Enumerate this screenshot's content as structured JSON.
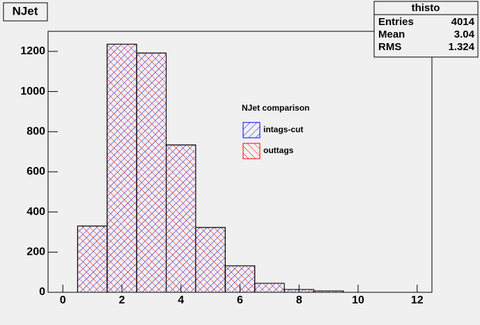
{
  "chart_data": {
    "type": "histogram",
    "title": "NJet",
    "bins": [
      0.5,
      1.5,
      2.5,
      3.5,
      4.5,
      5.5,
      6.5,
      7.5,
      8.5,
      9.5
    ],
    "series": [
      {
        "name": "intags-cut",
        "color": "#0000ff",
        "values": [
          330,
          1236,
          1192,
          734,
          323,
          132,
          45,
          14,
          7
        ]
      },
      {
        "name": "outtags",
        "color": "#ff0000",
        "values": [
          330,
          1236,
          1192,
          734,
          323,
          132,
          45,
          14,
          7
        ]
      }
    ],
    "legend_title": "NJet comparison",
    "xlim": [
      -0.5,
      12.5
    ],
    "xticks": [
      0,
      2,
      4,
      6,
      8,
      10,
      12
    ],
    "ylim": [
      0,
      1300
    ],
    "yticks": [
      0,
      200,
      400,
      600,
      800,
      1000,
      1200
    ],
    "stats": {
      "title": "thisto",
      "rows": [
        {
          "label": "Entries",
          "value": 4014
        },
        {
          "label": "Mean",
          "value": 3.04
        },
        {
          "label": "RMS",
          "value": 1.324
        }
      ]
    }
  }
}
